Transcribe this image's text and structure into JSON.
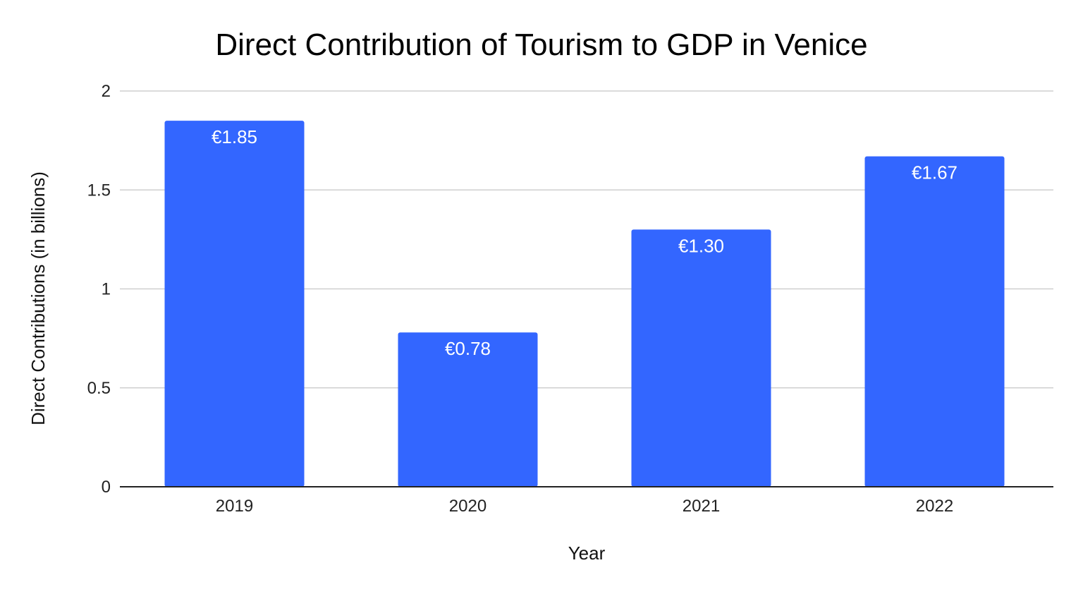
{
  "chart_data": {
    "type": "bar",
    "title": "Direct Contribution of Tourism to GDP in Venice",
    "xlabel": "Year",
    "ylabel": "Direct Contributions (in billions)",
    "categories": [
      "2019",
      "2020",
      "2021",
      "2022"
    ],
    "values": [
      1.85,
      0.78,
      1.3,
      1.67
    ],
    "data_labels": [
      "€1.85",
      "€0.78",
      "€1.30",
      "€1.67"
    ],
    "ylim": [
      0,
      2
    ],
    "yticks": [
      "0",
      "0.5",
      "1",
      "1.5",
      "2"
    ],
    "grid": true,
    "legend": "none",
    "bar_color": "#3366ff"
  }
}
